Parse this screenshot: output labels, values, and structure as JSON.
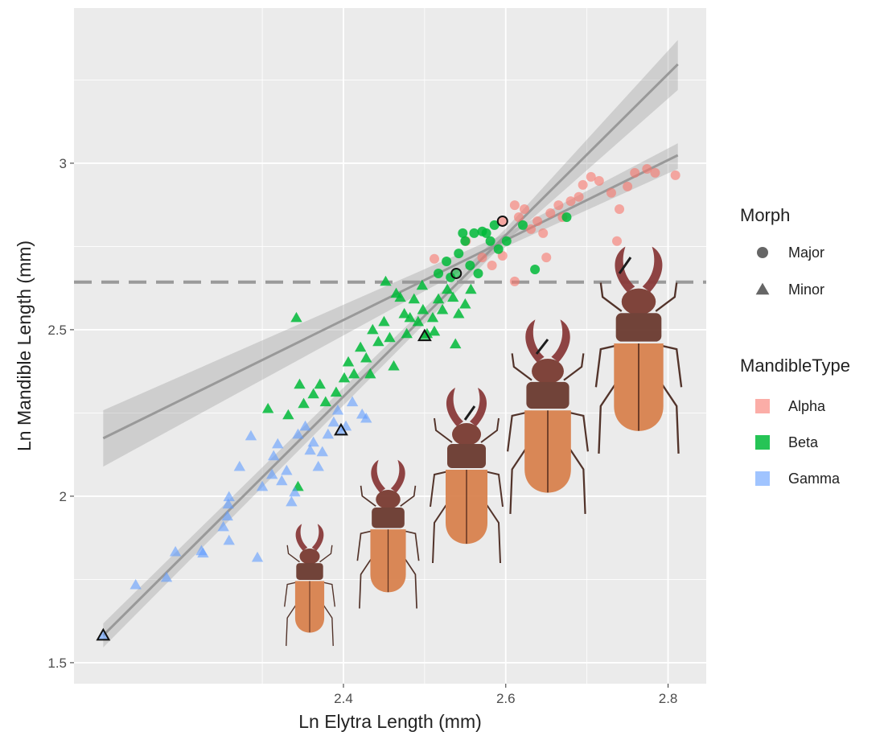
{
  "chart_data": {
    "type": "scatter",
    "x_label": "Ln Elytra Length (mm)",
    "y_label": "Ln Mandible Length (mm)",
    "xlim": [
      2.068,
      2.847
    ],
    "ylim": [
      1.437,
      3.466
    ],
    "xticks": [
      2.4,
      2.6,
      2.8
    ],
    "yticks": [
      1.5,
      2.0,
      2.5,
      3.0
    ],
    "x_minor_ticks": [
      2.3,
      2.5,
      2.7
    ],
    "y_minor_ticks": [
      1.75,
      2.25,
      2.75,
      3.25
    ],
    "grid": true,
    "hline": 2.643,
    "morph_title": "Morph",
    "morphs": [
      "Major",
      "Minor"
    ],
    "color_title": "MandibleType",
    "series": [
      {
        "name": "Alpha",
        "color": "#F8766D",
        "morph": "Major",
        "x": [
          2.512,
          2.551,
          2.571,
          2.583,
          2.596,
          2.611,
          2.616,
          2.623,
          2.631,
          2.639,
          2.646,
          2.655,
          2.665,
          2.67,
          2.68,
          2.69,
          2.695,
          2.705,
          2.715,
          2.73,
          2.74,
          2.75,
          2.759,
          2.774,
          2.784,
          2.809,
          2.65,
          2.611,
          2.737
        ],
        "values": [
          2.713,
          2.766,
          2.717,
          2.693,
          2.722,
          2.874,
          2.838,
          2.862,
          2.802,
          2.826,
          2.79,
          2.85,
          2.874,
          2.838,
          2.886,
          2.899,
          2.935,
          2.959,
          2.947,
          2.911,
          2.862,
          2.93,
          2.971,
          2.983,
          2.971,
          2.964,
          2.717,
          2.645,
          2.766
        ]
      },
      {
        "name": "Beta",
        "color": "#00BA38",
        "morph": "Major",
        "x": [
          2.517,
          2.527,
          2.542,
          2.55,
          2.561,
          2.571,
          2.581,
          2.591,
          2.601,
          2.532,
          2.556,
          2.566,
          2.576,
          2.586,
          2.621,
          2.636,
          2.675,
          2.547
        ],
        "values": [
          2.669,
          2.705,
          2.729,
          2.766,
          2.79,
          2.795,
          2.766,
          2.742,
          2.766,
          2.657,
          2.693,
          2.669,
          2.79,
          2.814,
          2.814,
          2.681,
          2.838,
          2.79
        ]
      },
      {
        "name": "Beta",
        "color": "#00BA38",
        "morph": "Minor",
        "x": [
          2.342,
          2.307,
          2.332,
          2.346,
          2.351,
          2.363,
          2.371,
          2.378,
          2.391,
          2.401,
          2.406,
          2.413,
          2.421,
          2.428,
          2.433,
          2.436,
          2.443,
          2.45,
          2.457,
          2.462,
          2.47,
          2.475,
          2.482,
          2.487,
          2.492,
          2.498,
          2.503,
          2.51,
          2.517,
          2.522,
          2.528,
          2.535,
          2.542,
          2.55,
          2.557,
          2.512,
          2.538,
          2.452,
          2.465,
          2.344,
          2.478,
          2.497
        ],
        "values": [
          2.536,
          2.263,
          2.244,
          2.336,
          2.278,
          2.307,
          2.336,
          2.283,
          2.312,
          2.355,
          2.403,
          2.367,
          2.447,
          2.415,
          2.367,
          2.5,
          2.464,
          2.524,
          2.476,
          2.391,
          2.597,
          2.548,
          2.536,
          2.592,
          2.524,
          2.56,
          2.488,
          2.536,
          2.592,
          2.56,
          2.621,
          2.597,
          2.548,
          2.577,
          2.621,
          2.495,
          2.457,
          2.645,
          2.609,
          2.029,
          2.488,
          2.633
        ]
      },
      {
        "name": "Gamma",
        "color": "#619CFF",
        "morph": "Minor",
        "x": [
          2.144,
          2.182,
          2.193,
          2.225,
          2.227,
          2.252,
          2.257,
          2.259,
          2.258,
          2.272,
          2.259,
          2.286,
          2.294,
          2.3,
          2.312,
          2.314,
          2.319,
          2.324,
          2.33,
          2.336,
          2.34,
          2.344,
          2.353,
          2.359,
          2.363,
          2.369,
          2.374,
          2.381,
          2.388,
          2.393,
          2.403,
          2.411,
          2.423,
          2.428
        ],
        "values": [
          1.734,
          1.756,
          1.833,
          1.836,
          1.829,
          1.908,
          1.94,
          1.998,
          1.976,
          2.089,
          1.867,
          2.181,
          1.816,
          2.029,
          2.065,
          2.121,
          2.157,
          2.046,
          2.077,
          1.983,
          2.012,
          2.186,
          2.21,
          2.138,
          2.162,
          2.089,
          2.133,
          2.186,
          2.222,
          2.258,
          2.21,
          2.283,
          2.246,
          2.234
        ]
      }
    ],
    "highlighted": [
      {
        "x": 2.539,
        "y": 2.669,
        "morph": "Major",
        "color": "#00BA38"
      },
      {
        "x": 2.596,
        "y": 2.826,
        "morph": "Major",
        "color": "#F8766D"
      },
      {
        "x": 2.104,
        "y": 1.582,
        "morph": "Minor",
        "color": "#619CFF"
      },
      {
        "x": 2.397,
        "y": 2.198,
        "morph": "Minor",
        "color": "#619CFF"
      },
      {
        "x": 2.5,
        "y": 2.481,
        "morph": "Minor",
        "color": "#00BA38"
      }
    ],
    "fits": [
      {
        "x": [
          2.104,
          2.6,
          2.812
        ],
        "y": [
          1.582,
          2.784,
          3.297
        ],
        "lower": [
          1.546,
          2.764,
          3.22
        ],
        "upper": [
          1.618,
          2.804,
          3.37
        ]
      },
      {
        "x": [
          2.104,
          2.6,
          2.812
        ],
        "y": [
          2.174,
          2.769,
          3.024
        ],
        "lower": [
          2.089,
          2.749,
          2.983
        ],
        "upper": [
          2.258,
          2.789,
          3.06
        ]
      }
    ]
  }
}
